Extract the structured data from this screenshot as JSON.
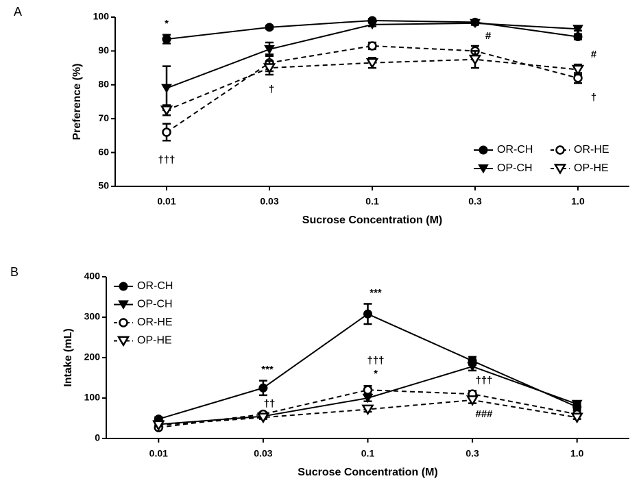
{
  "chart_data": [
    {
      "type": "line",
      "panel_label": "A",
      "xlabel": "Sucrose Concentration (M)",
      "ylabel": "Preference (%)",
      "categories": [
        "0.01",
        "0.03",
        "0.1",
        "0.3",
        "1.0"
      ],
      "ylim": [
        50,
        100
      ],
      "yticks": [
        50,
        60,
        70,
        80,
        90,
        100
      ],
      "legend": "lower right",
      "legend_columns": 2,
      "series": [
        {
          "name": "OR-CH",
          "color": "#000000",
          "marker": "circle",
          "filled": true,
          "dashed": false,
          "values": [
            93.5,
            97,
            99,
            98.5,
            94.2
          ],
          "errors": [
            1.3,
            0.5,
            0.5,
            0.5,
            0.8
          ]
        },
        {
          "name": "OP-CH",
          "color": "#000000",
          "marker": "triangle-down",
          "filled": true,
          "dashed": false,
          "values": [
            79,
            90.5,
            97.8,
            98.2,
            96.5
          ],
          "errors": [
            6.5,
            2,
            0.5,
            0.5,
            0.5
          ]
        },
        {
          "name": "OR-HE",
          "color": "#000000",
          "marker": "circle",
          "filled": false,
          "dashed": true,
          "values": [
            66,
            86.5,
            91.5,
            90,
            82
          ],
          "errors": [
            2.5,
            2.5,
            1,
            1.5,
            1.5
          ]
        },
        {
          "name": "OP-HE",
          "color": "#000000",
          "marker": "triangle-down",
          "filled": false,
          "dashed": true,
          "values": [
            72.5,
            85,
            86.5,
            87.5,
            84.5
          ],
          "errors": [
            1.5,
            2,
            1.5,
            2.5,
            1.5
          ]
        }
      ],
      "annotations": [
        "*",
        "†††",
        "†",
        "#",
        "#",
        "†"
      ]
    },
    {
      "type": "line",
      "panel_label": "B",
      "xlabel": "Sucrose Concentration (M)",
      "ylabel": "Intake (mL)",
      "categories": [
        "0.01",
        "0.03",
        "0.1",
        "0.3",
        "1.0"
      ],
      "ylim": [
        0,
        400
      ],
      "yticks": [
        0,
        100,
        200,
        300,
        400
      ],
      "legend": "upper left",
      "legend_columns": 1,
      "series": [
        {
          "name": "OR-CH",
          "color": "#000000",
          "marker": "circle",
          "filled": true,
          "dashed": false,
          "values": [
            48,
            125,
            308,
            192,
            78
          ],
          "errors": [
            5,
            18,
            25,
            10,
            8
          ]
        },
        {
          "name": "OP-CH",
          "color": "#000000",
          "marker": "triangle-down",
          "filled": true,
          "dashed": false,
          "values": [
            35,
            55,
            100,
            178,
            85
          ],
          "errors": [
            3,
            5,
            8,
            10,
            5
          ]
        },
        {
          "name": "OR-HE",
          "color": "#000000",
          "marker": "circle",
          "filled": false,
          "dashed": true,
          "values": [
            27,
            60,
            120,
            110,
            60
          ],
          "errors": [
            3,
            5,
            10,
            8,
            5
          ]
        },
        {
          "name": "OP-HE",
          "color": "#000000",
          "marker": "triangle-down",
          "filled": false,
          "dashed": true,
          "values": [
            33,
            52,
            72,
            95,
            52
          ],
          "errors": [
            3,
            4,
            6,
            8,
            4
          ]
        }
      ],
      "annotations": [
        "***",
        "††",
        "***",
        "†††",
        "*",
        "†††",
        "###"
      ]
    }
  ]
}
